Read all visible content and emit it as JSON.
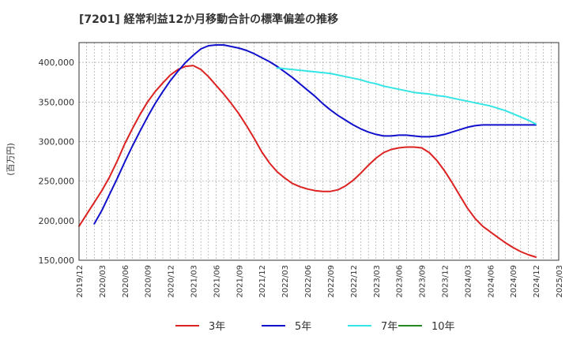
{
  "chart_data": {
    "type": "line",
    "title": "[7201]  経常利益12か月移動合計の標準偏差の推移",
    "ylabel": "(百万円)",
    "ylim": [
      150000,
      425000
    ],
    "yticks": [
      150000,
      200000,
      250000,
      300000,
      350000,
      400000
    ],
    "ytick_labels": [
      "150,000",
      "200,000",
      "250,000",
      "300,000",
      "350,000",
      "400,000"
    ],
    "xticks": [
      "2019/12",
      "2020/03",
      "2020/06",
      "2020/09",
      "2020/12",
      "2021/03",
      "2021/06",
      "2021/09",
      "2021/12",
      "2022/03",
      "2022/06",
      "2022/09",
      "2022/12",
      "2023/03",
      "2023/06",
      "2023/09",
      "2023/12",
      "2024/03",
      "2024/06",
      "2024/09",
      "2024/12",
      "2025/03"
    ],
    "grid": true,
    "legend_position": "bottom",
    "series": [
      {
        "name": "3年",
        "color": "#dd2222",
        "x": [
          "2019/12",
          "2020/01",
          "2020/02",
          "2020/03",
          "2020/04",
          "2020/05",
          "2020/06",
          "2020/07",
          "2020/08",
          "2020/09",
          "2020/10",
          "2020/11",
          "2020/12",
          "2021/01",
          "2021/02",
          "2021/03",
          "2021/04",
          "2021/05",
          "2021/06",
          "2021/07",
          "2021/08",
          "2021/09",
          "2021/10",
          "2021/11",
          "2021/12",
          "2022/01",
          "2022/02",
          "2022/03",
          "2022/04",
          "2022/05",
          "2022/06",
          "2022/07",
          "2022/08",
          "2022/09",
          "2022/10",
          "2022/11",
          "2022/12",
          "2023/01",
          "2023/02",
          "2023/03",
          "2023/04",
          "2023/05",
          "2023/06",
          "2023/07",
          "2023/08",
          "2023/09",
          "2023/10",
          "2023/11",
          "2023/12",
          "2024/01",
          "2024/02",
          "2024/03",
          "2024/04",
          "2024/05",
          "2024/06",
          "2024/07",
          "2024/08",
          "2024/09",
          "2024/10",
          "2024/11",
          "2024/12"
        ],
        "values": [
          193000,
          208000,
          223000,
          238000,
          255000,
          275000,
          297000,
          316000,
          334000,
          350000,
          363000,
          374000,
          384000,
          391000,
          395000,
          396000,
          391000,
          382000,
          371000,
          360000,
          348000,
          335000,
          320000,
          304000,
          287000,
          273000,
          262000,
          254000,
          247000,
          243000,
          240000,
          238000,
          237000,
          237000,
          239000,
          244000,
          251000,
          260000,
          270000,
          279000,
          286000,
          290000,
          292000,
          293000,
          293000,
          292000,
          286000,
          276000,
          263000,
          248000,
          232000,
          216000,
          203000,
          193000,
          186000,
          179000,
          172000,
          166000,
          161000,
          157000,
          154000
        ]
      },
      {
        "name": "5年",
        "color": "#1111cc",
        "x": [
          "2020/02",
          "2020/03",
          "2020/04",
          "2020/05",
          "2020/06",
          "2020/07",
          "2020/08",
          "2020/09",
          "2020/10",
          "2020/11",
          "2020/12",
          "2021/01",
          "2021/02",
          "2021/03",
          "2021/04",
          "2021/05",
          "2021/06",
          "2021/07",
          "2021/08",
          "2021/09",
          "2021/10",
          "2021/11",
          "2021/12",
          "2022/01",
          "2022/02",
          "2022/03",
          "2022/04",
          "2022/05",
          "2022/06",
          "2022/07",
          "2022/08",
          "2022/09",
          "2022/10",
          "2022/11",
          "2022/12",
          "2023/01",
          "2023/02",
          "2023/03",
          "2023/04",
          "2023/05",
          "2023/06",
          "2023/07",
          "2023/08",
          "2023/09",
          "2023/10",
          "2023/11",
          "2023/12",
          "2024/01",
          "2024/02",
          "2024/03",
          "2024/04",
          "2024/05",
          "2024/06",
          "2024/07",
          "2024/08",
          "2024/09",
          "2024/10",
          "2024/11",
          "2024/12"
        ],
        "values": [
          196000,
          213000,
          233000,
          253000,
          274000,
          294000,
          313000,
          331000,
          348000,
          363000,
          377000,
          389000,
          400000,
          409000,
          417000,
          421000,
          422000,
          422000,
          420000,
          418000,
          415000,
          411000,
          406000,
          401000,
          395000,
          388000,
          381000,
          373000,
          365000,
          357000,
          348000,
          340000,
          333000,
          327000,
          321000,
          316000,
          312000,
          309000,
          307000,
          307000,
          308000,
          308000,
          307000,
          306000,
          306000,
          307000,
          309000,
          312000,
          315000,
          318000,
          320000,
          321000,
          321000,
          321000,
          321000,
          321000,
          321000,
          321000,
          321000
        ]
      },
      {
        "name": "7年",
        "color": "#33e5e5",
        "x": [
          "2022/02",
          "2022/03",
          "2022/04",
          "2022/05",
          "2022/06",
          "2022/07",
          "2022/08",
          "2022/09",
          "2022/10",
          "2022/11",
          "2022/12",
          "2023/01",
          "2023/02",
          "2023/03",
          "2023/04",
          "2023/05",
          "2023/06",
          "2023/07",
          "2023/08",
          "2023/09",
          "2023/10",
          "2023/11",
          "2023/12",
          "2024/01",
          "2024/02",
          "2024/03",
          "2024/04",
          "2024/05",
          "2024/06",
          "2024/07",
          "2024/08",
          "2024/09",
          "2024/10",
          "2024/11",
          "2024/12"
        ],
        "values": [
          393000,
          392000,
          391000,
          390000,
          389000,
          388000,
          387000,
          386000,
          384000,
          382000,
          380000,
          378000,
          375000,
          373000,
          370000,
          368000,
          366000,
          364000,
          362000,
          361000,
          360000,
          358000,
          357000,
          355000,
          353000,
          351000,
          349000,
          347000,
          345000,
          342000,
          339000,
          335000,
          331000,
          327000,
          322000
        ]
      },
      {
        "name": "10年",
        "color": "#228822",
        "x": [],
        "values": []
      }
    ]
  }
}
